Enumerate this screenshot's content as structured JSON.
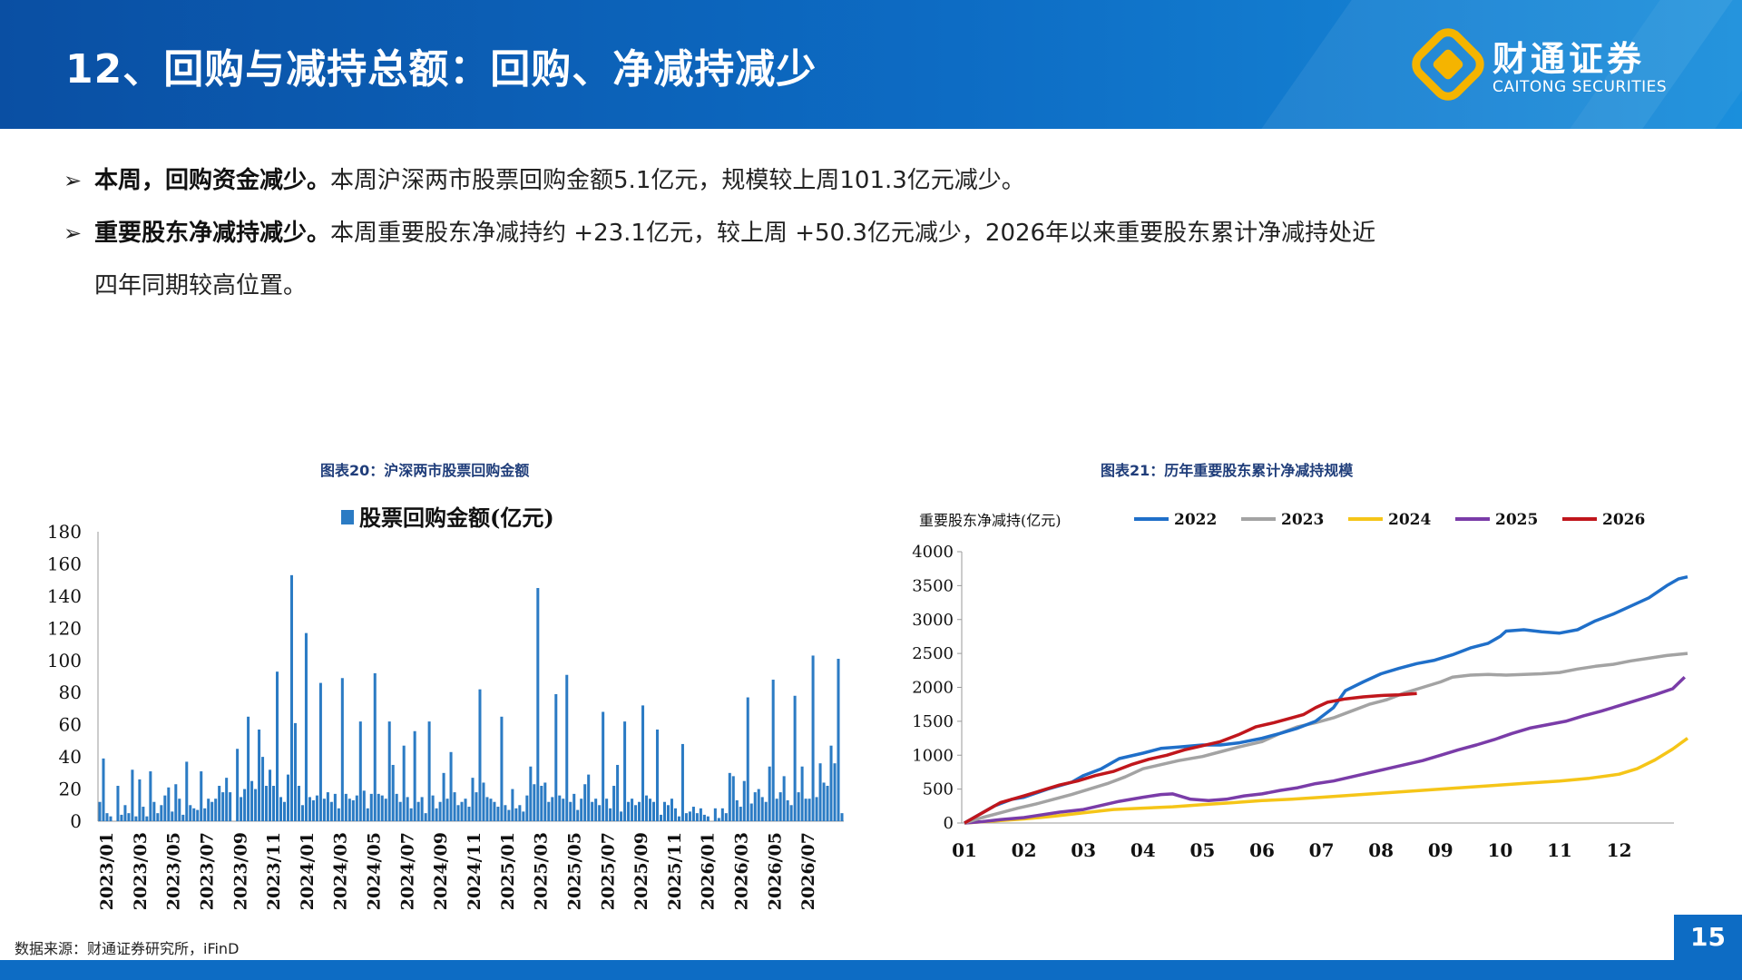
{
  "header": {
    "title": "12、回购与减持总额：回购、净减持减少",
    "logo_cn": "财通证券",
    "logo_en": "CAITONG SECURITIES"
  },
  "bullets": [
    {
      "bold": "本周，回购资金减少。",
      "text": "本周沪深两市股票回购金额5.1亿元，规模较上周101.3亿元减少。"
    },
    {
      "bold": "重要股东净减持减少。",
      "text": "本周重要股东净减持约 +23.1亿元，较上周 +50.3亿元减少，2026年以来重要股东累计净减持处近",
      "text2": "四年同期较高位置。"
    }
  ],
  "chart1_title": "图表20：沪深两市股票回购金额",
  "chart2_title": "图表21：历年重要股东累计净减持规模",
  "source": "数据来源：财通证券研究所，iFinD",
  "page_number": "15",
  "colors": {
    "bar": "#2b7bc4",
    "y2022": "#1f6fc9",
    "y2023": "#a3a3a3",
    "y2024": "#f5c518",
    "y2025": "#7a3ca8",
    "y2026": "#c0161c"
  },
  "chart_data": [
    {
      "type": "bar",
      "legend": "股票回购金额(亿元)",
      "ylim": [
        0,
        180
      ],
      "yticks": [
        0,
        20,
        40,
        60,
        80,
        100,
        120,
        140,
        160,
        180
      ],
      "xtick_labels": [
        "2023/01",
        "2023/03",
        "2023/05",
        "2023/07",
        "2023/09",
        "2023/11",
        "2024/01",
        "2024/03",
        "2024/05",
        "2024/07",
        "2024/09",
        "2024/11",
        "2025/01",
        "2025/03",
        "2025/05",
        "2025/07",
        "2025/09",
        "2025/11",
        "2026/01",
        "2026/03",
        "2026/05",
        "2026/07"
      ],
      "values": [
        12,
        39,
        5,
        3,
        0,
        22,
        4,
        10,
        5,
        32,
        3,
        26,
        9,
        3,
        31,
        12,
        5,
        10,
        16,
        21,
        6,
        23,
        14,
        4,
        37,
        10,
        8,
        7,
        31,
        8,
        14,
        12,
        14,
        22,
        18,
        27,
        18,
        0,
        45,
        15,
        20,
        65,
        25,
        20,
        57,
        40,
        22,
        32,
        22,
        93,
        15,
        12,
        29,
        153,
        61,
        22,
        10,
        117,
        15,
        13,
        16,
        86,
        14,
        18,
        12,
        17,
        8,
        89,
        17,
        14,
        13,
        16,
        62,
        19,
        8,
        17,
        92,
        17,
        16,
        14,
        62,
        35,
        17,
        12,
        47,
        15,
        8,
        56,
        12,
        15,
        5,
        62,
        16,
        8,
        12,
        30,
        14,
        43,
        18,
        10,
        12,
        14,
        9,
        27,
        18,
        82,
        24,
        15,
        14,
        12,
        9,
        65,
        10,
        7,
        20,
        8,
        10,
        6,
        16,
        34,
        23,
        145,
        22,
        24,
        12,
        15,
        79,
        16,
        14,
        91,
        12,
        17,
        7,
        14,
        23,
        29,
        12,
        14,
        10,
        68,
        14,
        8,
        22,
        35,
        6,
        62,
        12,
        14,
        10,
        12,
        72,
        16,
        14,
        12,
        57,
        4,
        12,
        10,
        14,
        8,
        3,
        48,
        5,
        6,
        9,
        5,
        8,
        4,
        3,
        0,
        8,
        2,
        8,
        5,
        30,
        28,
        13,
        9,
        25,
        77,
        11,
        18,
        20,
        15,
        12,
        34,
        88,
        14,
        18,
        28,
        13,
        10,
        78,
        18,
        34,
        14,
        14,
        103,
        15,
        36,
        24,
        22,
        47,
        36,
        101,
        5
      ]
    },
    {
      "type": "line",
      "ylabel": "重要股东净减持(亿元)",
      "ylim": [
        0,
        4000
      ],
      "yticks": [
        0,
        500,
        1000,
        1500,
        2000,
        2500,
        3000,
        3500,
        4000
      ],
      "x_labels": [
        "01",
        "02",
        "03",
        "04",
        "05",
        "06",
        "07",
        "08",
        "09",
        "10",
        "11",
        "12"
      ],
      "series": [
        {
          "name": "2022",
          "points": [
            [
              0,
              0
            ],
            [
              0.2,
              100
            ],
            [
              0.5,
              250
            ],
            [
              0.8,
              350
            ],
            [
              1.0,
              380
            ],
            [
              1.4,
              500
            ],
            [
              1.8,
              600
            ],
            [
              2.0,
              700
            ],
            [
              2.3,
              800
            ],
            [
              2.6,
              950
            ],
            [
              3.0,
              1030
            ],
            [
              3.3,
              1100
            ],
            [
              3.6,
              1120
            ],
            [
              4.0,
              1150
            ],
            [
              4.3,
              1150
            ],
            [
              4.6,
              1180
            ],
            [
              5.0,
              1250
            ],
            [
              5.3,
              1320
            ],
            [
              5.6,
              1400
            ],
            [
              5.9,
              1500
            ],
            [
              6.2,
              1700
            ],
            [
              6.4,
              1950
            ],
            [
              6.7,
              2080
            ],
            [
              7.0,
              2200
            ],
            [
              7.3,
              2280
            ],
            [
              7.6,
              2350
            ],
            [
              7.9,
              2400
            ],
            [
              8.2,
              2480
            ],
            [
              8.5,
              2580
            ],
            [
              8.8,
              2650
            ],
            [
              9.0,
              2750
            ],
            [
              9.1,
              2830
            ],
            [
              9.4,
              2850
            ],
            [
              9.7,
              2820
            ],
            [
              10.0,
              2800
            ],
            [
              10.3,
              2850
            ],
            [
              10.6,
              2980
            ],
            [
              10.9,
              3080
            ],
            [
              11.2,
              3200
            ],
            [
              11.5,
              3320
            ],
            [
              11.8,
              3500
            ],
            [
              12.0,
              3600
            ],
            [
              12.15,
              3630
            ]
          ]
        },
        {
          "name": "2023",
          "points": [
            [
              0,
              0
            ],
            [
              0.3,
              80
            ],
            [
              0.6,
              150
            ],
            [
              0.9,
              220
            ],
            [
              1.2,
              280
            ],
            [
              1.5,
              350
            ],
            [
              1.8,
              420
            ],
            [
              2.1,
              500
            ],
            [
              2.4,
              580
            ],
            [
              2.7,
              680
            ],
            [
              3.0,
              800
            ],
            [
              3.3,
              860
            ],
            [
              3.6,
              920
            ],
            [
              4.0,
              980
            ],
            [
              4.3,
              1050
            ],
            [
              4.6,
              1120
            ],
            [
              5.0,
              1200
            ],
            [
              5.3,
              1320
            ],
            [
              5.6,
              1420
            ],
            [
              5.9,
              1480
            ],
            [
              6.2,
              1550
            ],
            [
              6.5,
              1650
            ],
            [
              6.8,
              1750
            ],
            [
              7.1,
              1820
            ],
            [
              7.4,
              1920
            ],
            [
              7.7,
              2000
            ],
            [
              8.0,
              2080
            ],
            [
              8.2,
              2150
            ],
            [
              8.5,
              2180
            ],
            [
              8.8,
              2190
            ],
            [
              9.1,
              2180
            ],
            [
              9.4,
              2190
            ],
            [
              9.7,
              2200
            ],
            [
              10.0,
              2220
            ],
            [
              10.3,
              2270
            ],
            [
              10.6,
              2310
            ],
            [
              10.9,
              2340
            ],
            [
              11.2,
              2390
            ],
            [
              11.5,
              2430
            ],
            [
              11.8,
              2470
            ],
            [
              12.15,
              2500
            ]
          ]
        },
        {
          "name": "2024",
          "points": [
            [
              0,
              0
            ],
            [
              0.5,
              30
            ],
            [
              1.0,
              60
            ],
            [
              1.5,
              100
            ],
            [
              2.0,
              150
            ],
            [
              2.5,
              200
            ],
            [
              3.0,
              220
            ],
            [
              3.5,
              240
            ],
            [
              4.0,
              270
            ],
            [
              4.5,
              300
            ],
            [
              5.0,
              330
            ],
            [
              5.5,
              350
            ],
            [
              6.0,
              380
            ],
            [
              6.5,
              410
            ],
            [
              7.0,
              440
            ],
            [
              7.5,
              470
            ],
            [
              8.0,
              500
            ],
            [
              8.5,
              530
            ],
            [
              9.0,
              560
            ],
            [
              9.5,
              590
            ],
            [
              10.0,
              620
            ],
            [
              10.5,
              660
            ],
            [
              11.0,
              720
            ],
            [
              11.3,
              800
            ],
            [
              11.6,
              930
            ],
            [
              11.9,
              1090
            ],
            [
              12.15,
              1250
            ]
          ]
        },
        {
          "name": "2025",
          "points": [
            [
              0,
              0
            ],
            [
              0.3,
              20
            ],
            [
              0.6,
              50
            ],
            [
              1.0,
              80
            ],
            [
              1.3,
              120
            ],
            [
              1.6,
              160
            ],
            [
              2.0,
              200
            ],
            [
              2.3,
              260
            ],
            [
              2.6,
              320
            ],
            [
              3.0,
              380
            ],
            [
              3.3,
              420
            ],
            [
              3.5,
              430
            ],
            [
              3.8,
              350
            ],
            [
              4.1,
              330
            ],
            [
              4.4,
              350
            ],
            [
              4.7,
              400
            ],
            [
              5.0,
              430
            ],
            [
              5.3,
              480
            ],
            [
              5.6,
              520
            ],
            [
              5.9,
              580
            ],
            [
              6.2,
              620
            ],
            [
              6.5,
              680
            ],
            [
              6.8,
              740
            ],
            [
              7.1,
              800
            ],
            [
              7.4,
              860
            ],
            [
              7.7,
              920
            ],
            [
              8.0,
              1000
            ],
            [
              8.3,
              1080
            ],
            [
              8.6,
              1150
            ],
            [
              8.9,
              1230
            ],
            [
              9.2,
              1320
            ],
            [
              9.5,
              1400
            ],
            [
              9.8,
              1450
            ],
            [
              10.1,
              1500
            ],
            [
              10.4,
              1580
            ],
            [
              10.7,
              1650
            ],
            [
              11.0,
              1730
            ],
            [
              11.3,
              1810
            ],
            [
              11.6,
              1890
            ],
            [
              11.9,
              1980
            ],
            [
              12.1,
              2150
            ]
          ]
        },
        {
          "name": "2026",
          "points": [
            [
              0,
              0
            ],
            [
              0.3,
              150
            ],
            [
              0.6,
              300
            ],
            [
              1.0,
              400
            ],
            [
              1.3,
              480
            ],
            [
              1.6,
              560
            ],
            [
              1.9,
              620
            ],
            [
              2.2,
              700
            ],
            [
              2.5,
              760
            ],
            [
              2.8,
              860
            ],
            [
              3.1,
              940
            ],
            [
              3.4,
              1000
            ],
            [
              3.7,
              1080
            ],
            [
              4.0,
              1140
            ],
            [
              4.3,
              1200
            ],
            [
              4.6,
              1300
            ],
            [
              4.9,
              1420
            ],
            [
              5.2,
              1480
            ],
            [
              5.5,
              1550
            ],
            [
              5.7,
              1600
            ],
            [
              5.9,
              1700
            ],
            [
              6.1,
              1780
            ],
            [
              6.4,
              1830
            ],
            [
              6.7,
              1860
            ],
            [
              7.0,
              1880
            ],
            [
              7.3,
              1890
            ],
            [
              7.6,
              1910
            ]
          ]
        }
      ]
    }
  ]
}
